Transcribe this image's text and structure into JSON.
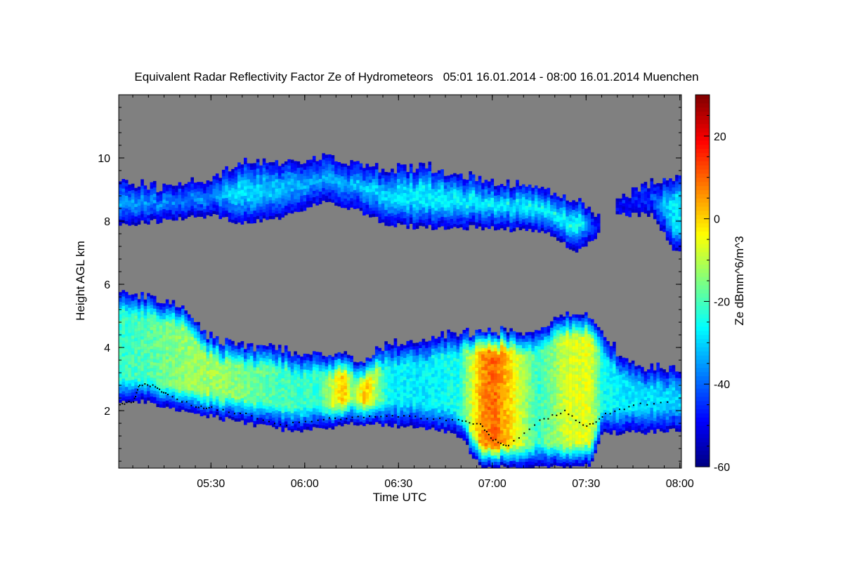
{
  "chart_data": {
    "type": "heatmap",
    "title": "Equivalent Radar Reflectivity Factor Ze of Hydrometeors   05:01 16.01.2014 - 08:00 16.01.2014 Muenchen",
    "xlabel": "Time UTC",
    "ylabel": "Height AGL km",
    "colorbar_label": "Ze dBmm^6/m^3",
    "x_unit": "minutes after 05:00 UTC",
    "xlim": [
      0.5,
      180.5
    ],
    "ylim": [
      0.18,
      12
    ],
    "x_ticks": [
      {
        "value": 30,
        "label": "05:30"
      },
      {
        "value": 60,
        "label": "06:00"
      },
      {
        "value": 90,
        "label": "06:30"
      },
      {
        "value": 120,
        "label": "07:00"
      },
      {
        "value": 150,
        "label": "07:30"
      },
      {
        "value": 180,
        "label": "08:00"
      }
    ],
    "y_ticks": [
      {
        "value": 2,
        "label": "2"
      },
      {
        "value": 4,
        "label": "4"
      },
      {
        "value": 6,
        "label": "6"
      },
      {
        "value": 8,
        "label": "8"
      },
      {
        "value": 10,
        "label": "10"
      }
    ],
    "color_range": [
      -60,
      30
    ],
    "color_ticks": [
      {
        "value": 20,
        "label": "20"
      },
      {
        "value": 0,
        "label": "0"
      },
      {
        "value": -20,
        "label": "-20"
      },
      {
        "value": -40,
        "label": "-40"
      },
      {
        "value": -60,
        "label": "-60"
      }
    ],
    "background_color": "#808080",
    "layers": [
      {
        "name": "upper cloud layer",
        "samples": [
          [
            0.7,
            7.9,
            9.3,
            -32
          ],
          [
            14,
            8.0,
            9.0,
            -30
          ],
          [
            30,
            8.2,
            9.3,
            -30
          ],
          [
            39,
            7.9,
            9.8,
            -30
          ],
          [
            52,
            8.1,
            9.8,
            -32
          ],
          [
            64,
            8.6,
            10.0,
            -33
          ],
          [
            75,
            8.4,
            9.8,
            -31
          ],
          [
            86,
            7.9,
            9.6,
            -30
          ],
          [
            97,
            7.8,
            9.7,
            -28
          ],
          [
            120,
            7.8,
            9.2,
            -26
          ],
          [
            138,
            7.6,
            8.9,
            -22
          ],
          [
            147,
            7.0,
            8.6,
            -24
          ],
          [
            154,
            7.6,
            8.0,
            -40
          ],
          [
            156,
            null,
            null,
            null
          ],
          [
            159,
            8.2,
            8.6,
            -38
          ],
          [
            171,
            8.2,
            9.2,
            -36
          ],
          [
            178,
            7.0,
            9.3,
            -28
          ],
          [
            180.5,
            7.0,
            9.3,
            -28
          ]
        ]
      },
      {
        "name": "lower cloud layer",
        "samples": [
          [
            0.7,
            2.3,
            5.8,
            -22
          ],
          [
            7,
            2.3,
            5.6,
            -20
          ],
          [
            20,
            2.0,
            5.3,
            -14
          ],
          [
            30,
            1.8,
            4.2,
            -12
          ],
          [
            41,
            1.6,
            4.0,
            -16
          ],
          [
            52,
            1.4,
            3.9,
            -20
          ],
          [
            64,
            1.4,
            3.7,
            -22
          ],
          [
            72,
            1.5,
            3.7,
            2
          ],
          [
            75,
            1.6,
            3.6,
            -16
          ],
          [
            79,
            1.6,
            3.6,
            2
          ],
          [
            86,
            1.5,
            4.0,
            -26
          ],
          [
            97,
            1.5,
            4.2,
            -28
          ],
          [
            109,
            1.2,
            4.4,
            -24
          ],
          [
            116,
            0.2,
            4.5,
            5
          ],
          [
            120,
            0.2,
            4.5,
            10
          ],
          [
            125,
            0.2,
            4.5,
            0
          ],
          [
            134,
            0.2,
            4.4,
            -22
          ],
          [
            143,
            0.2,
            5.0,
            -8
          ],
          [
            151,
            0.3,
            5.0,
            -6
          ],
          [
            155,
            1.3,
            4.3,
            -26
          ],
          [
            164,
            1.3,
            3.4,
            -28
          ],
          [
            178,
            1.4,
            3.3,
            -30
          ],
          [
            180.5,
            1.4,
            3.3,
            -30
          ]
        ]
      }
    ],
    "cloud_base_points": [
      [
        0.7,
        2.25
      ],
      [
        5,
        2.3
      ],
      [
        7,
        2.85
      ],
      [
        12,
        2.8
      ],
      [
        16,
        2.5
      ],
      [
        25,
        2.15
      ],
      [
        30,
        2.1
      ],
      [
        41,
        1.9
      ],
      [
        52,
        1.55
      ],
      [
        64,
        1.75
      ],
      [
        75,
        1.8
      ],
      [
        86,
        1.85
      ],
      [
        97,
        1.8
      ],
      [
        109,
        1.7
      ],
      [
        116,
        1.6
      ],
      [
        120,
        1.1
      ],
      [
        125,
        0.9
      ],
      [
        135,
        1.7
      ],
      [
        143,
        2.0
      ],
      [
        150,
        1.5
      ],
      [
        156,
        1.9
      ],
      [
        165,
        2.2
      ],
      [
        178,
        2.3
      ]
    ]
  }
}
